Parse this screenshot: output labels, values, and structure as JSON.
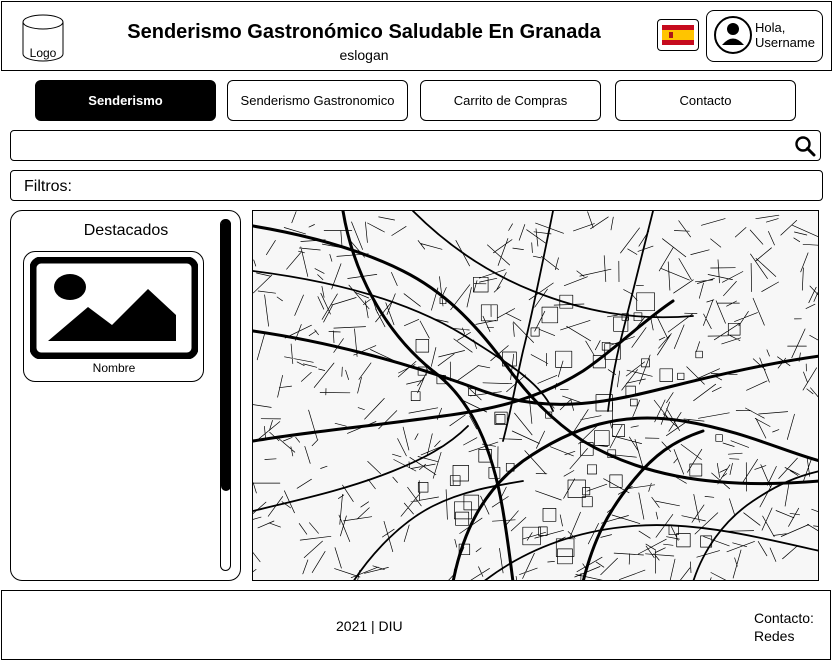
{
  "header": {
    "logo_label": "Logo",
    "title": "Senderismo Gastronómico Saludable En Granada",
    "slogan": "eslogan",
    "language_flag": "spain-flag-icon",
    "user_greeting": "Hola,",
    "user_name": "Username"
  },
  "nav": {
    "items": [
      {
        "label": "Senderismo",
        "active": true
      },
      {
        "label": "Senderismo Gastronomico",
        "active": false
      },
      {
        "label": "Carrito de Compras",
        "active": false
      },
      {
        "label": "Contacto",
        "active": false
      }
    ]
  },
  "search": {
    "value": "",
    "placeholder": "",
    "icon": "search-icon"
  },
  "filters": {
    "label": "Filtros:"
  },
  "featured": {
    "title": "Destacados",
    "items": [
      {
        "name": "Nombre",
        "icon": "image-placeholder-icon"
      }
    ],
    "scroll_position": 0
  },
  "map": {
    "type": "street-map"
  },
  "footer": {
    "copyright": "2021 | DIU",
    "contact_label": "Contacto:",
    "contact_value": "Redes"
  },
  "colors": {
    "primary": "#000000",
    "background": "#ffffff",
    "flag_red": "#c60b1e",
    "flag_yellow": "#ffc400"
  }
}
